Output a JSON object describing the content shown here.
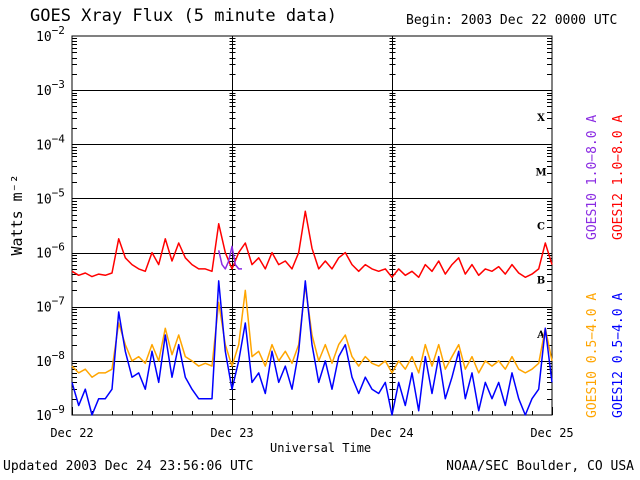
{
  "header": {
    "title": "GOES Xray Flux (5 minute data)",
    "begin": "Begin:  2003 Dec 22 0000 UTC"
  },
  "footer": {
    "updated": "Updated 2003 Dec 24 23:56:06 UTC",
    "credit": "NOAA/SEC Boulder, CO USA"
  },
  "colors": {
    "goes10_long": "#8a2be2",
    "goes12_long": "#ff0000",
    "goes10_short": "#ffa500",
    "goes12_short": "#0000ff",
    "grid": "#000000"
  },
  "chart_data": {
    "type": "line",
    "title": "GOES Xray Flux (5 minute data)",
    "xlabel": "Universal Time",
    "ylabel": "Watts m⁻²",
    "yscale": "log",
    "ylim": [
      1e-09,
      0.01
    ],
    "xlim": [
      0,
      72
    ],
    "x_unit": "hours since 2003 Dec 22 0000 UTC",
    "x_ticks": [
      {
        "value": 0,
        "label": "Dec 22"
      },
      {
        "value": 24,
        "label": "Dec 23"
      },
      {
        "value": 48,
        "label": "Dec 24"
      },
      {
        "value": 72,
        "label": "Dec 25"
      }
    ],
    "y_ticks": [
      {
        "value": 1e-09,
        "mant": "10",
        "exp": "−9"
      },
      {
        "value": 1e-08,
        "mant": "10",
        "exp": "−8"
      },
      {
        "value": 1e-07,
        "mant": "10",
        "exp": "−7"
      },
      {
        "value": 1e-06,
        "mant": "10",
        "exp": "−6"
      },
      {
        "value": 1e-05,
        "mant": "10",
        "exp": "−5"
      },
      {
        "value": 0.0001,
        "mant": "10",
        "exp": "−4"
      },
      {
        "value": 0.001,
        "mant": "10",
        "exp": "−3"
      },
      {
        "value": 0.01,
        "mant": "10",
        "exp": "−2"
      }
    ],
    "flare_classes": [
      {
        "label": "X",
        "min": 0.0001,
        "max": 0.001
      },
      {
        "label": "M",
        "min": 1e-05,
        "max": 0.0001
      },
      {
        "label": "C",
        "min": 1e-06,
        "max": 1e-05
      },
      {
        "label": "B",
        "min": 1e-07,
        "max": 1e-06
      },
      {
        "label": "A",
        "min": 1e-08,
        "max": 1e-07
      }
    ],
    "legend": [
      {
        "label": "GOES10 1.0−8.0 A",
        "color": "#8a2be2"
      },
      {
        "label": "GOES12 1.0−8.0 A",
        "color": "#ff0000"
      },
      {
        "label": "GOES10 0.5−4.0 A",
        "color": "#ffa500"
      },
      {
        "label": "GOES12 0.5−4.0 A",
        "color": "#0000ff"
      }
    ],
    "series": [
      {
        "name": "GOES12 1.0−8.0 A",
        "color": "#ff0000",
        "x": [
          0,
          1,
          2,
          3,
          4,
          5,
          6,
          7,
          8,
          9,
          10,
          11,
          12,
          13,
          14,
          15,
          16,
          17,
          18,
          19,
          20,
          21,
          22,
          23,
          24,
          25,
          26,
          27,
          28,
          29,
          30,
          31,
          32,
          33,
          34,
          35,
          36,
          37,
          38,
          39,
          40,
          41,
          42,
          43,
          44,
          45,
          46,
          47,
          48,
          49,
          50,
          51,
          52,
          53,
          54,
          55,
          56,
          57,
          58,
          59,
          60,
          61,
          62,
          63,
          64,
          65,
          66,
          67,
          68,
          69,
          70,
          71,
          72
        ],
        "y": [
          4.5e-07,
          3.8e-07,
          4.2e-07,
          3.6e-07,
          4e-07,
          3.8e-07,
          4.2e-07,
          1.8e-06,
          8e-07,
          6e-07,
          5e-07,
          4.5e-07,
          1e-06,
          6e-07,
          1.8e-06,
          7e-07,
          1.5e-06,
          8e-07,
          6e-07,
          5e-07,
          5e-07,
          4.5e-07,
          3.4e-06,
          1e-06,
          5e-07,
          1e-06,
          1.5e-06,
          6e-07,
          8e-07,
          5e-07,
          1e-06,
          6e-07,
          7e-07,
          5e-07,
          1e-06,
          5.8e-06,
          1.2e-06,
          5e-07,
          7e-07,
          5e-07,
          8e-07,
          1e-06,
          6e-07,
          4.5e-07,
          6e-07,
          5e-07,
          4.5e-07,
          5e-07,
          3.5e-07,
          5e-07,
          3.8e-07,
          4.5e-07,
          3.5e-07,
          6e-07,
          4.5e-07,
          7e-07,
          4e-07,
          6e-07,
          8e-07,
          4e-07,
          6e-07,
          3.8e-07,
          5e-07,
          4.5e-07,
          5.5e-07,
          4e-07,
          6e-07,
          4.2e-07,
          3.5e-07,
          4e-07,
          5e-07,
          1.5e-06,
          6e-07
        ]
      },
      {
        "name": "GOES10 1.0−8.0 A",
        "color": "#8a2be2",
        "x": [
          22,
          22.5,
          23,
          23.5,
          24,
          24.5,
          25,
          25.5
        ],
        "y": [
          1.1e-06,
          6e-07,
          5e-07,
          7e-07,
          1.3e-06,
          6e-07,
          5e-07,
          5e-07
        ]
      },
      {
        "name": "GOES10 0.5−4.0 A",
        "color": "#ffa500",
        "x": [
          0,
          1,
          2,
          3,
          4,
          5,
          6,
          7,
          8,
          9,
          10,
          11,
          12,
          13,
          14,
          15,
          16,
          17,
          18,
          19,
          20,
          21,
          22,
          23,
          24,
          25,
          26,
          27,
          28,
          29,
          30,
          31,
          32,
          33,
          34,
          35,
          36,
          37,
          38,
          39,
          40,
          41,
          42,
          43,
          44,
          45,
          46,
          47,
          48,
          49,
          50,
          51,
          52,
          53,
          54,
          55,
          56,
          57,
          58,
          59,
          60,
          61,
          62,
          63,
          64,
          65,
          66,
          67,
          68,
          69,
          70,
          71,
          72
        ],
        "y": [
          8e-09,
          6e-09,
          7e-09,
          5e-09,
          6e-09,
          6e-09,
          7e-09,
          5e-08,
          2e-08,
          1e-08,
          1.2e-08,
          9e-09,
          2e-08,
          1e-08,
          4e-08,
          1.3e-08,
          3e-08,
          1.2e-08,
          1e-08,
          8e-09,
          9e-09,
          8e-09,
          1.2e-07,
          2e-08,
          8e-09,
          2e-08,
          2e-07,
          1.2e-08,
          1.5e-08,
          8e-09,
          2e-08,
          1e-08,
          1.5e-08,
          9e-09,
          2e-08,
          2.5e-07,
          3e-08,
          1e-08,
          2e-08,
          9e-09,
          2e-08,
          3e-08,
          1.2e-08,
          8e-09,
          1.2e-08,
          9e-09,
          8e-09,
          1e-08,
          6e-09,
          1e-08,
          7e-09,
          1.2e-08,
          6e-09,
          2e-08,
          8e-09,
          2e-08,
          7e-09,
          1.2e-08,
          2e-08,
          7e-09,
          1.2e-08,
          6e-09,
          1e-08,
          8e-09,
          1e-08,
          7e-09,
          1.2e-08,
          7e-09,
          6e-09,
          7e-09,
          9e-09,
          4e-08,
          1e-08
        ]
      },
      {
        "name": "GOES12 0.5−4.0 A",
        "color": "#0000ff",
        "x": [
          0,
          1,
          2,
          3,
          4,
          5,
          6,
          7,
          8,
          9,
          10,
          11,
          12,
          13,
          14,
          15,
          16,
          17,
          18,
          19,
          20,
          21,
          22,
          23,
          24,
          25,
          26,
          27,
          28,
          29,
          30,
          31,
          32,
          33,
          34,
          35,
          36,
          37,
          38,
          39,
          40,
          41,
          42,
          43,
          44,
          45,
          46,
          47,
          48,
          49,
          50,
          51,
          52,
          53,
          54,
          55,
          56,
          57,
          58,
          59,
          60,
          61,
          62,
          63,
          64,
          65,
          66,
          67,
          68,
          69,
          70,
          71,
          72
        ],
        "y": [
          4e-09,
          1.5e-09,
          3e-09,
          1e-09,
          2e-09,
          2e-09,
          3e-09,
          8e-08,
          1.5e-08,
          5e-09,
          6e-09,
          3e-09,
          1.5e-08,
          4e-09,
          3e-08,
          5e-09,
          2e-08,
          5e-09,
          3e-09,
          2e-09,
          2e-09,
          2e-09,
          3e-07,
          1.5e-08,
          3e-09,
          1e-08,
          5e-08,
          4e-09,
          6e-09,
          2.5e-09,
          1.5e-08,
          4e-09,
          8e-09,
          3e-09,
          1.5e-08,
          3e-07,
          2e-08,
          4e-09,
          1e-08,
          3e-09,
          1.2e-08,
          2e-08,
          5e-09,
          2.5e-09,
          5e-09,
          3e-09,
          2.5e-09,
          4e-09,
          1e-09,
          4e-09,
          1.5e-09,
          6e-09,
          1.2e-09,
          1.2e-08,
          2.5e-09,
          1.2e-08,
          2e-09,
          5e-09,
          1.5e-08,
          2e-09,
          6e-09,
          1.2e-09,
          4e-09,
          2e-09,
          4e-09,
          1.5e-09,
          6e-09,
          2e-09,
          1e-09,
          2e-09,
          3e-09,
          4e-08,
          4e-09
        ]
      }
    ]
  }
}
